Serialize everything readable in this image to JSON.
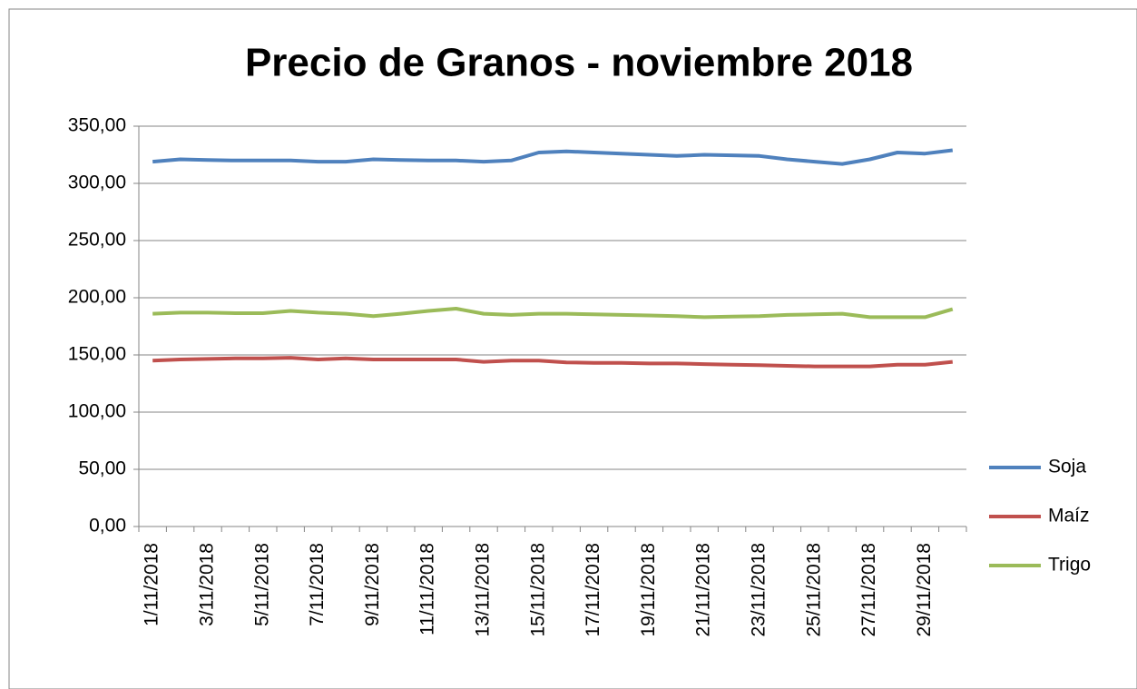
{
  "chart_data": {
    "type": "line",
    "title": "Precio de Granos - noviembre 2018",
    "categories": [
      "1/11/2018",
      null,
      "3/11/2018",
      null,
      "5/11/2018",
      null,
      "7/11/2018",
      null,
      "9/11/2018",
      null,
      "11/11/2018",
      null,
      "13/11/2018",
      null,
      "15/11/2018",
      null,
      "17/11/2018",
      null,
      "19/11/2018",
      null,
      "21/11/2018",
      null,
      "23/11/2018",
      null,
      "25/11/2018",
      null,
      "27/11/2018",
      null,
      "29/11/2018",
      null
    ],
    "series": [
      {
        "name": "Soja",
        "color": "#4f81bd",
        "values": [
          319,
          321,
          320.5,
          320,
          320,
          320,
          319,
          319,
          321,
          320.5,
          320,
          320,
          319,
          320,
          327,
          328,
          327,
          326,
          325,
          324,
          325,
          324.5,
          324,
          321,
          319,
          317,
          321,
          327,
          326,
          329
        ]
      },
      {
        "name": "Maíz",
        "color": "#c0504d",
        "values": [
          145,
          146,
          146.5,
          147,
          147,
          147.5,
          146,
          147,
          146,
          146,
          146,
          146,
          144,
          145,
          145,
          143.5,
          143,
          143,
          142.5,
          142.5,
          142,
          141.5,
          141,
          140.5,
          140,
          140,
          140,
          141.5,
          141.5,
          144
        ]
      },
      {
        "name": "Trigo",
        "color": "#9bbb59",
        "values": [
          186,
          187,
          187,
          186.5,
          186.5,
          188.5,
          187,
          186,
          184,
          186,
          188.5,
          190.5,
          186,
          185,
          186,
          186,
          185.5,
          185,
          184.5,
          184,
          183,
          183.5,
          184,
          185,
          185.5,
          186,
          183,
          183,
          183,
          190
        ]
      }
    ],
    "ylim": [
      0,
      350
    ],
    "yticks": [
      {
        "value": 0,
        "label": "0,00"
      },
      {
        "value": 50,
        "label": "50,00"
      },
      {
        "value": 100,
        "label": "100,00"
      },
      {
        "value": 150,
        "label": "150,00"
      },
      {
        "value": 200,
        "label": "200,00"
      },
      {
        "value": 250,
        "label": "250,00"
      },
      {
        "value": 300,
        "label": "300,00"
      },
      {
        "value": 350,
        "label": "350,00"
      }
    ],
    "grid": true,
    "legend": "right"
  }
}
